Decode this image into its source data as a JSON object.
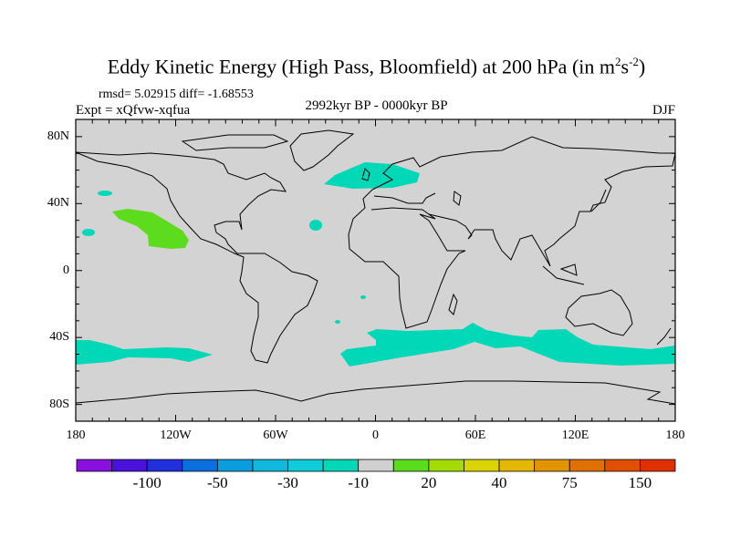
{
  "title": {
    "main": "Eddy Kinetic Energy (High Pass, Bloomfield) at 200 hPa (in m",
    "sup1": "2",
    "mid": "s",
    "sup2": "-2",
    "end": ")"
  },
  "stats": "rmsd= 5.02915 diff= -1.68553",
  "experiment": "Expt = xQfvw-xqfua",
  "period": "2992kyr BP - 0000kyr BP",
  "season": "DJF",
  "map": {
    "lat_labels": [
      {
        "text": "80N",
        "lat": 80
      },
      {
        "text": "40N",
        "lat": 40
      },
      {
        "text": "0",
        "lat": 0
      },
      {
        "text": "40S",
        "lat": -40
      },
      {
        "text": "80S",
        "lat": -80
      }
    ],
    "lon_labels": [
      {
        "text": "180",
        "lon": -180
      },
      {
        "text": "120W",
        "lon": -120
      },
      {
        "text": "60W",
        "lon": -60
      },
      {
        "text": "0",
        "lon": 0
      },
      {
        "text": "60E",
        "lon": 60
      },
      {
        "text": "120E",
        "lon": 120
      },
      {
        "text": "180",
        "lon": 180
      }
    ],
    "land_color": "#d3d3d3",
    "anomaly_colors": {
      "negative_small": "#00d8b8",
      "positive_small": "#5cdc1c"
    }
  },
  "colorbar": {
    "colors": [
      "#8a10e0",
      "#4a10dc",
      "#2030dc",
      "#0a6ede",
      "#0a9ede",
      "#10b9dc",
      "#10ccd8",
      "#00d8b8",
      "#d0d0d0",
      "#5cdc1c",
      "#a4dc00",
      "#dcd400",
      "#e4b800",
      "#e09400",
      "#e07000",
      "#e05000",
      "#e03000"
    ],
    "labels": [
      {
        "text": "-100",
        "boundary": 2
      },
      {
        "text": "-50",
        "boundary": 4
      },
      {
        "text": "-30",
        "boundary": 6
      },
      {
        "text": "-10",
        "boundary": 8
      },
      {
        "text": "20",
        "boundary": 10
      },
      {
        "text": "40",
        "boundary": 12
      },
      {
        "text": "75",
        "boundary": 14
      },
      {
        "text": "150",
        "boundary": 16
      }
    ]
  }
}
